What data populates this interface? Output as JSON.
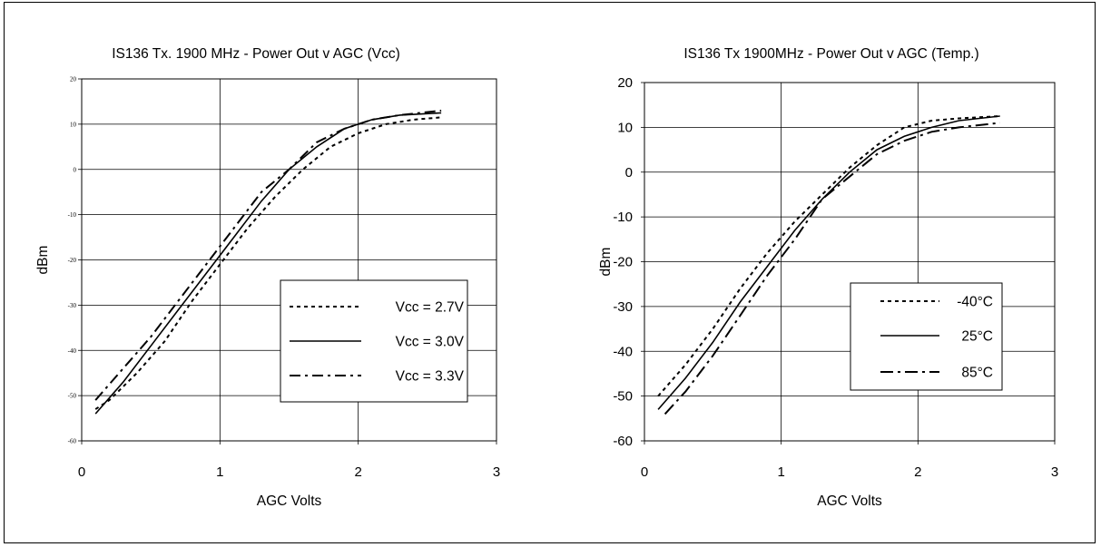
{
  "chart_data": [
    {
      "type": "line",
      "title": "IS136 Tx. 1900 MHz - Power Out v AGC (Vcc)",
      "xlabel": "AGC Volts",
      "ylabel": "dBm",
      "xlim": [
        0,
        3
      ],
      "ylim": [
        -60,
        20
      ],
      "x_ticks": [
        "0",
        "1",
        "2",
        "3"
      ],
      "y_ticks": [
        "20",
        "10",
        "0",
        "-10",
        "-20",
        "-30",
        "-40",
        "-50",
        "-60"
      ],
      "grid": true,
      "legend_position": "lower-right",
      "series": [
        {
          "name": "Vcc = 2.7V",
          "dash": "short-dash",
          "points": [
            [
              0.1,
              -53
            ],
            [
              0.2,
              -51
            ],
            [
              0.4,
              -45
            ],
            [
              0.6,
              -38
            ],
            [
              0.8,
              -29
            ],
            [
              1.0,
              -21
            ],
            [
              1.2,
              -13
            ],
            [
              1.4,
              -6
            ],
            [
              1.6,
              0
            ],
            [
              1.8,
              5
            ],
            [
              2.0,
              8
            ],
            [
              2.2,
              10
            ],
            [
              2.4,
              11
            ],
            [
              2.6,
              11.5
            ]
          ]
        },
        {
          "name": "Vcc = 3.0V",
          "dash": "solid",
          "points": [
            [
              0.1,
              -54
            ],
            [
              0.3,
              -47
            ],
            [
              0.5,
              -39
            ],
            [
              0.7,
              -31
            ],
            [
              0.9,
              -23
            ],
            [
              1.1,
              -15
            ],
            [
              1.3,
              -7
            ],
            [
              1.5,
              0
            ],
            [
              1.7,
              5
            ],
            [
              1.9,
              9
            ],
            [
              2.1,
              11
            ],
            [
              2.3,
              12
            ],
            [
              2.6,
              12.5
            ]
          ]
        },
        {
          "name": "Vcc = 3.3V",
          "dash": "dash-dot",
          "points": [
            [
              0.1,
              -51
            ],
            [
              0.3,
              -44
            ],
            [
              0.5,
              -37
            ],
            [
              0.7,
              -29
            ],
            [
              0.9,
              -21
            ],
            [
              1.1,
              -13
            ],
            [
              1.3,
              -5
            ],
            [
              1.5,
              0
            ],
            [
              1.7,
              6
            ],
            [
              1.9,
              9
            ],
            [
              2.1,
              11
            ],
            [
              2.3,
              12
            ],
            [
              2.6,
              13
            ]
          ]
        }
      ]
    },
    {
      "type": "line",
      "title": "IS136 Tx 1900MHz - Power Out v AGC (Temp.)",
      "xlabel": "AGC Volts",
      "ylabel": "dBm",
      "xlim": [
        0,
        3
      ],
      "ylim": [
        -60,
        20
      ],
      "x_ticks": [
        "0",
        "1",
        "2",
        "3"
      ],
      "y_ticks": [
        "20",
        "10",
        "0",
        "-10",
        "-20",
        "-30",
        "-40",
        "-50",
        "-60"
      ],
      "grid": true,
      "legend_position": "lower-right",
      "series": [
        {
          "name": "-40°C",
          "dash": "short-dash",
          "points": [
            [
              0.1,
              -50
            ],
            [
              0.3,
              -43
            ],
            [
              0.5,
              -35
            ],
            [
              0.7,
              -26
            ],
            [
              0.9,
              -18
            ],
            [
              1.1,
              -11
            ],
            [
              1.3,
              -5
            ],
            [
              1.5,
              1
            ],
            [
              1.7,
              6
            ],
            [
              1.9,
              10
            ],
            [
              2.1,
              11.5
            ],
            [
              2.3,
              12
            ],
            [
              2.6,
              12.5
            ]
          ]
        },
        {
          "name": "25°C",
          "dash": "solid",
          "points": [
            [
              0.1,
              -53
            ],
            [
              0.3,
              -46
            ],
            [
              0.5,
              -38
            ],
            [
              0.7,
              -29
            ],
            [
              0.9,
              -21
            ],
            [
              1.1,
              -13
            ],
            [
              1.3,
              -6
            ],
            [
              1.5,
              0
            ],
            [
              1.7,
              5
            ],
            [
              1.9,
              8
            ],
            [
              2.1,
              10
            ],
            [
              2.3,
              11.5
            ],
            [
              2.6,
              12.5
            ]
          ]
        },
        {
          "name": "85°C",
          "dash": "long-dash-dot",
          "points": [
            [
              0.15,
              -54
            ],
            [
              0.3,
              -49
            ],
            [
              0.5,
              -41
            ],
            [
              0.7,
              -32
            ],
            [
              0.9,
              -23
            ],
            [
              1.1,
              -15
            ],
            [
              1.3,
              -6
            ],
            [
              1.5,
              -1
            ],
            [
              1.7,
              4
            ],
            [
              1.9,
              7
            ],
            [
              2.1,
              9
            ],
            [
              2.3,
              10
            ],
            [
              2.6,
              11
            ]
          ]
        }
      ]
    }
  ]
}
